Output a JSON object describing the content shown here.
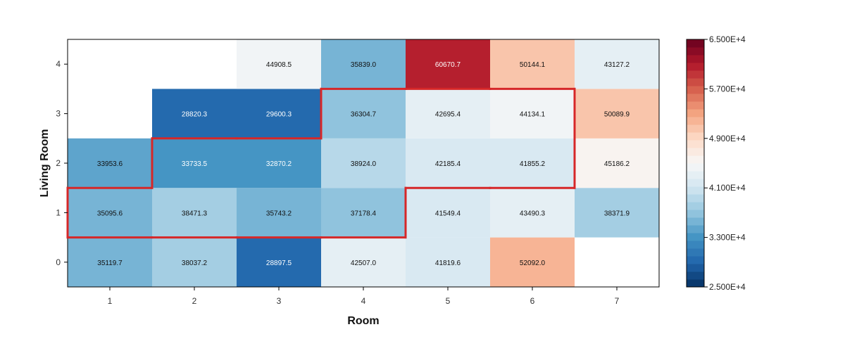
{
  "chart_data": {
    "type": "heatmap",
    "title": "",
    "xlabel": "Room",
    "ylabel": "Living Room",
    "x_categories": [
      "1",
      "2",
      "3",
      "4",
      "5",
      "6",
      "7"
    ],
    "y_categories": [
      "0",
      "1",
      "2",
      "3",
      "4"
    ],
    "cells": [
      {
        "x": "1",
        "y": "0",
        "value": 35119.7,
        "label": "35119.7"
      },
      {
        "x": "2",
        "y": "0",
        "value": 38037.2,
        "label": "38037.2"
      },
      {
        "x": "3",
        "y": "0",
        "value": 28897.5,
        "label": "28897.5"
      },
      {
        "x": "4",
        "y": "0",
        "value": 42507.0,
        "label": "42507.0"
      },
      {
        "x": "5",
        "y": "0",
        "value": 41819.6,
        "label": "41819.6"
      },
      {
        "x": "6",
        "y": "0",
        "value": 52092.0,
        "label": "52092.0"
      },
      {
        "x": "1",
        "y": "1",
        "value": 35095.6,
        "label": "35095.6"
      },
      {
        "x": "2",
        "y": "1",
        "value": 38471.3,
        "label": "38471.3"
      },
      {
        "x": "3",
        "y": "1",
        "value": 35743.2,
        "label": "35743.2"
      },
      {
        "x": "4",
        "y": "1",
        "value": 37178.4,
        "label": "37178.4"
      },
      {
        "x": "5",
        "y": "1",
        "value": 41549.4,
        "label": "41549.4"
      },
      {
        "x": "6",
        "y": "1",
        "value": 43490.3,
        "label": "43490.3"
      },
      {
        "x": "7",
        "y": "1",
        "value": 38371.9,
        "label": "38371.9"
      },
      {
        "x": "1",
        "y": "2",
        "value": 33953.6,
        "label": "33953.6"
      },
      {
        "x": "2",
        "y": "2",
        "value": 33733.5,
        "label": "33733.5"
      },
      {
        "x": "3",
        "y": "2",
        "value": 32870.2,
        "label": "32870.2"
      },
      {
        "x": "4",
        "y": "2",
        "value": 38924.0,
        "label": "38924.0"
      },
      {
        "x": "5",
        "y": "2",
        "value": 42185.4,
        "label": "42185.4"
      },
      {
        "x": "6",
        "y": "2",
        "value": 41855.2,
        "label": "41855.2"
      },
      {
        "x": "7",
        "y": "2",
        "value": 45186.2,
        "label": "45186.2"
      },
      {
        "x": "2",
        "y": "3",
        "value": 28820.3,
        "label": "28820.3"
      },
      {
        "x": "3",
        "y": "3",
        "value": 29600.3,
        "label": "29600.3"
      },
      {
        "x": "4",
        "y": "3",
        "value": 36304.7,
        "label": "36304.7"
      },
      {
        "x": "5",
        "y": "3",
        "value": 42695.4,
        "label": "42695.4"
      },
      {
        "x": "6",
        "y": "3",
        "value": 44134.1,
        "label": "44134.1"
      },
      {
        "x": "7",
        "y": "3",
        "value": 50089.9,
        "label": "50089.9"
      },
      {
        "x": "3",
        "y": "4",
        "value": 44908.5,
        "label": "44908.5"
      },
      {
        "x": "4",
        "y": "4",
        "value": 35839.0,
        "label": "35839.0"
      },
      {
        "x": "5",
        "y": "4",
        "value": 60670.7,
        "label": "60670.7"
      },
      {
        "x": "6",
        "y": "4",
        "value": 50144.1,
        "label": "50144.1"
      },
      {
        "x": "7",
        "y": "4",
        "value": 43127.2,
        "label": "43127.2"
      }
    ],
    "highlighted_cells": [
      [
        "1",
        "1"
      ],
      [
        "2",
        "1"
      ],
      [
        "3",
        "1"
      ],
      [
        "4",
        "1"
      ],
      [
        "2",
        "2"
      ],
      [
        "3",
        "2"
      ],
      [
        "4",
        "2"
      ],
      [
        "5",
        "2"
      ],
      [
        "6",
        "2"
      ],
      [
        "4",
        "3"
      ],
      [
        "5",
        "3"
      ],
      [
        "6",
        "3"
      ]
    ],
    "highlight_color": "#d62728",
    "colorbar": {
      "min": 25000,
      "max": 65000,
      "ticks": [
        {
          "value": 25000,
          "label": "2.500E+4"
        },
        {
          "value": 33000,
          "label": "3.300E+4"
        },
        {
          "value": 41000,
          "label": "4.100E+4"
        },
        {
          "value": 49000,
          "label": "4.900E+4"
        },
        {
          "value": 57000,
          "label": "5.700E+4"
        },
        {
          "value": 65000,
          "label": "6.500E+4"
        }
      ],
      "colormap": "RdBu_r",
      "steps": 32
    }
  }
}
